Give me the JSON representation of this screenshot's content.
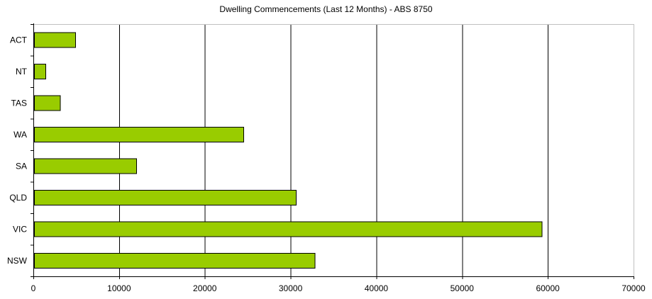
{
  "chart_data": {
    "type": "bar",
    "orientation": "horizontal",
    "title": "Dwelling Commencements (Last 12 Months) - ABS 8750",
    "categories": [
      "ACT",
      "NT",
      "TAS",
      "WA",
      "SA",
      "QLD",
      "VIC",
      "NSW"
    ],
    "values": [
      4900,
      1400,
      3100,
      24500,
      12000,
      30600,
      59300,
      32800
    ],
    "xlim": [
      0,
      70000
    ],
    "x_ticks": [
      0,
      10000,
      20000,
      30000,
      40000,
      50000,
      60000,
      70000
    ],
    "xlabel": "",
    "ylabel": "",
    "grid": true,
    "legend_position": "none",
    "colors": {
      "bar_fill": "#99CC00",
      "bar_border": "#000000",
      "gridline": "#000000",
      "plot_border": "#C0C0C0",
      "axis": "#000000",
      "background": "#FFFFFF",
      "text": "#000000"
    }
  }
}
